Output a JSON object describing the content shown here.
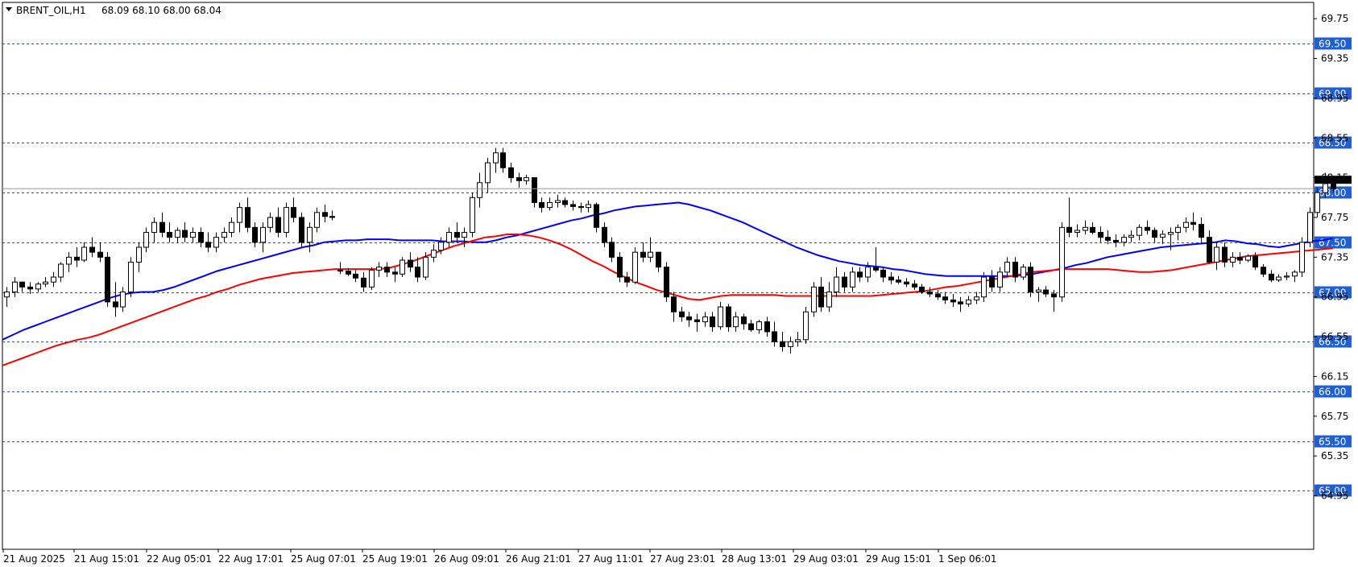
{
  "header": {
    "symbol": "BRENT_OIL,H1",
    "ohlc": "68.09 68.10 68.00 68.04"
  },
  "colors": {
    "background": "#ffffff",
    "frame": "#000000",
    "bull_candle": "#ffffff",
    "bear_candle": "#000000",
    "ma_fast": "#0000ff",
    "ma_slow": "#ff0000",
    "level_line": "#1e4fbf",
    "level_label_bg": "#1e5fd6",
    "zone_fill": "#d2a570",
    "current_price_label_bg": "#000000"
  },
  "chart_data": {
    "type": "candlestick",
    "title": "BRENT_OIL,H1",
    "ylim": [
      64.95,
      69.88
    ],
    "y_ticks": [
      "69.75",
      "69.35",
      "68.95",
      "68.55",
      "68.15",
      "67.75",
      "67.35",
      "66.95",
      "66.55",
      "66.15",
      "65.75",
      "65.35",
      "64.95"
    ],
    "x_ticks": [
      "21 Aug 2025",
      "21 Aug 15:01",
      "22 Aug 05:01",
      "22 Aug 17:01",
      "25 Aug 07:01",
      "25 Aug 19:01",
      "26 Aug 09:01",
      "26 Aug 21:01",
      "27 Aug 11:01",
      "27 Aug 23:01",
      "28 Aug 13:01",
      "29 Aug 03:01",
      "29 Aug 15:01",
      "1 Sep 06:01"
    ],
    "horizontal_levels": [
      "69.50",
      "69.00",
      "68.50",
      "68.00",
      "67.50",
      "67.00",
      "66.50",
      "66.00",
      "65.50",
      "65.00"
    ],
    "current_price": "68.04",
    "zone": {
      "from_bar": 199,
      "to_bar": 250,
      "low": 67.5,
      "high": 68.0
    },
    "candles": [
      [
        66.95,
        67.05,
        66.85,
        67.0
      ],
      [
        67.0,
        67.15,
        66.95,
        67.1
      ],
      [
        67.1,
        67.1,
        67.0,
        67.05
      ],
      [
        67.05,
        67.1,
        66.98,
        67.03
      ],
      [
        67.03,
        67.1,
        67.0,
        67.08
      ],
      [
        67.08,
        67.15,
        67.05,
        67.1
      ],
      [
        67.1,
        67.2,
        67.05,
        67.15
      ],
      [
        67.15,
        67.3,
        67.1,
        67.28
      ],
      [
        67.28,
        67.4,
        67.2,
        67.35
      ],
      [
        67.35,
        67.45,
        67.25,
        67.32
      ],
      [
        67.32,
        67.5,
        67.3,
        67.45
      ],
      [
        67.45,
        67.55,
        67.35,
        67.4
      ],
      [
        67.4,
        67.5,
        67.3,
        67.35
      ],
      [
        67.35,
        67.4,
        66.85,
        66.9
      ],
      [
        66.9,
        67.1,
        66.75,
        66.85
      ],
      [
        66.85,
        67.05,
        66.8,
        67.0
      ],
      [
        67.0,
        67.35,
        66.95,
        67.3
      ],
      [
        67.3,
        67.5,
        67.2,
        67.45
      ],
      [
        67.45,
        67.65,
        67.4,
        67.6
      ],
      [
        67.6,
        67.75,
        67.5,
        67.7
      ],
      [
        67.7,
        67.8,
        67.55,
        67.6
      ],
      [
        67.6,
        67.7,
        67.5,
        67.55
      ],
      [
        67.55,
        67.65,
        67.5,
        67.62
      ],
      [
        67.62,
        67.7,
        67.5,
        67.55
      ],
      [
        67.55,
        67.65,
        67.5,
        67.6
      ],
      [
        67.6,
        67.65,
        67.45,
        67.5
      ],
      [
        67.5,
        67.6,
        67.4,
        67.45
      ],
      [
        67.45,
        67.6,
        67.4,
        67.55
      ],
      [
        67.55,
        67.65,
        67.5,
        67.6
      ],
      [
        67.6,
        67.75,
        67.55,
        67.7
      ],
      [
        67.7,
        67.9,
        67.6,
        67.85
      ],
      [
        67.85,
        67.95,
        67.6,
        67.65
      ],
      [
        67.65,
        67.7,
        67.45,
        67.5
      ],
      [
        67.5,
        67.7,
        67.4,
        67.65
      ],
      [
        67.65,
        67.8,
        67.6,
        67.75
      ],
      [
        67.75,
        67.85,
        67.55,
        67.6
      ],
      [
        67.6,
        67.9,
        67.55,
        67.85
      ],
      [
        67.85,
        67.95,
        67.7,
        67.75
      ],
      [
        67.75,
        67.8,
        67.45,
        67.5
      ],
      [
        67.5,
        67.7,
        67.4,
        67.65
      ],
      [
        67.65,
        67.85,
        67.6,
        67.8
      ],
      [
        67.8,
        67.88,
        67.7,
        67.76
      ],
      [
        67.76,
        67.82,
        67.72,
        67.75
      ],
      [
        67.22,
        67.3,
        67.18,
        67.21
      ],
      [
        67.21,
        67.24,
        67.16,
        67.18
      ],
      [
        67.18,
        67.22,
        67.1,
        67.14
      ],
      [
        67.14,
        67.2,
        67.0,
        67.05
      ],
      [
        67.05,
        67.25,
        67.02,
        67.22
      ],
      [
        67.22,
        67.3,
        67.15,
        67.25
      ],
      [
        67.25,
        67.3,
        67.15,
        67.2
      ],
      [
        67.2,
        67.25,
        67.1,
        67.18
      ],
      [
        67.18,
        67.35,
        67.15,
        67.32
      ],
      [
        67.32,
        67.4,
        67.2,
        67.25
      ],
      [
        67.25,
        67.35,
        67.1,
        67.15
      ],
      [
        67.15,
        67.4,
        67.12,
        67.35
      ],
      [
        67.35,
        67.48,
        67.3,
        67.42
      ],
      [
        67.42,
        67.55,
        67.38,
        67.5
      ],
      [
        67.5,
        67.65,
        67.45,
        67.6
      ],
      [
        67.6,
        67.7,
        67.5,
        67.55
      ],
      [
        67.55,
        67.65,
        67.45,
        67.6
      ],
      [
        67.6,
        68.0,
        67.55,
        67.95
      ],
      [
        67.95,
        68.2,
        67.85,
        68.1
      ],
      [
        68.1,
        68.35,
        68.0,
        68.3
      ],
      [
        68.3,
        68.45,
        68.2,
        68.4
      ],
      [
        68.4,
        68.45,
        68.2,
        68.25
      ],
      [
        68.25,
        68.3,
        68.1,
        68.15
      ],
      [
        68.15,
        68.2,
        68.05,
        68.12
      ],
      [
        68.12,
        68.18,
        68.08,
        68.15
      ],
      [
        68.15,
        68.15,
        67.85,
        67.9
      ],
      [
        67.9,
        67.95,
        67.8,
        67.85
      ],
      [
        67.85,
        67.95,
        67.82,
        67.9
      ],
      [
        67.9,
        67.98,
        67.85,
        67.92
      ],
      [
        67.92,
        67.95,
        67.85,
        67.88
      ],
      [
        67.88,
        67.92,
        67.82,
        67.86
      ],
      [
        67.86,
        67.9,
        67.8,
        67.85
      ],
      [
        67.85,
        67.92,
        67.8,
        67.88
      ],
      [
        67.88,
        67.9,
        67.6,
        67.65
      ],
      [
        67.65,
        67.7,
        67.45,
        67.5
      ],
      [
        67.5,
        67.55,
        67.3,
        67.35
      ],
      [
        67.35,
        67.4,
        67.1,
        67.15
      ],
      [
        67.15,
        67.2,
        67.05,
        67.1
      ],
      [
        67.1,
        67.45,
        67.08,
        67.4
      ],
      [
        67.4,
        67.5,
        67.3,
        67.35
      ],
      [
        67.35,
        67.55,
        67.3,
        67.4
      ],
      [
        67.4,
        67.4,
        67.2,
        67.25
      ],
      [
        67.25,
        67.3,
        66.9,
        66.95
      ],
      [
        66.95,
        67.0,
        66.7,
        66.8
      ],
      [
        66.8,
        66.85,
        66.7,
        66.75
      ],
      [
        66.75,
        66.8,
        66.65,
        66.72
      ],
      [
        66.72,
        66.78,
        66.6,
        66.7
      ],
      [
        66.7,
        66.8,
        66.65,
        66.75
      ],
      [
        66.75,
        66.8,
        66.6,
        66.65
      ],
      [
        66.65,
        66.9,
        66.62,
        66.85
      ],
      [
        66.85,
        66.88,
        66.6,
        66.65
      ],
      [
        66.65,
        66.8,
        66.6,
        66.75
      ],
      [
        66.75,
        66.78,
        66.62,
        66.68
      ],
      [
        66.68,
        66.72,
        66.6,
        66.62
      ],
      [
        66.62,
        66.72,
        66.58,
        66.7
      ],
      [
        66.7,
        66.75,
        66.55,
        66.6
      ],
      [
        66.6,
        66.7,
        66.45,
        66.5
      ],
      [
        66.5,
        66.6,
        66.4,
        66.45
      ],
      [
        66.45,
        66.55,
        66.38,
        66.5
      ],
      [
        66.5,
        66.6,
        66.45,
        66.52
      ],
      [
        66.52,
        66.85,
        66.48,
        66.8
      ],
      [
        66.8,
        67.1,
        66.75,
        67.05
      ],
      [
        67.05,
        67.15,
        66.8,
        66.85
      ],
      [
        66.85,
        67.1,
        66.8,
        67.0
      ],
      [
        67.0,
        67.25,
        66.95,
        67.15
      ],
      [
        67.15,
        67.2,
        67.0,
        67.05
      ],
      [
        67.05,
        67.25,
        67.0,
        67.2
      ],
      [
        67.2,
        67.25,
        67.1,
        67.15
      ],
      [
        67.15,
        67.3,
        67.1,
        67.25
      ],
      [
        67.25,
        67.45,
        67.2,
        67.22
      ],
      [
        67.22,
        67.25,
        67.1,
        67.15
      ],
      [
        67.15,
        67.2,
        67.08,
        67.12
      ],
      [
        67.12,
        67.16,
        67.08,
        67.1
      ],
      [
        67.1,
        67.14,
        67.05,
        67.08
      ],
      [
        67.08,
        67.12,
        67.02,
        67.05
      ],
      [
        67.05,
        67.08,
        66.98,
        67.0
      ],
      [
        67.0,
        67.05,
        66.95,
        66.98
      ],
      [
        66.98,
        67.02,
        66.92,
        66.95
      ],
      [
        66.95,
        67.0,
        66.88,
        66.92
      ],
      [
        66.92,
        66.98,
        66.85,
        66.9
      ],
      [
        66.9,
        66.95,
        66.8,
        66.88
      ],
      [
        66.88,
        66.96,
        66.85,
        66.92
      ],
      [
        66.92,
        67.0,
        66.88,
        66.95
      ],
      [
        66.95,
        67.2,
        66.9,
        67.15
      ],
      [
        67.15,
        67.22,
        67.0,
        67.05
      ],
      [
        67.05,
        67.25,
        67.0,
        67.2
      ],
      [
        67.2,
        67.35,
        67.15,
        67.3
      ],
      [
        67.3,
        67.35,
        67.1,
        67.15
      ],
      [
        67.15,
        67.28,
        67.12,
        67.25
      ],
      [
        67.25,
        67.3,
        66.95,
        67.0
      ],
      [
        67.0,
        67.05,
        66.9,
        67.02
      ],
      [
        67.02,
        67.06,
        66.95,
        66.98
      ],
      [
        66.98,
        67.02,
        66.8,
        66.95
      ],
      [
        66.95,
        67.7,
        66.9,
        67.65
      ],
      [
        67.65,
        67.95,
        67.55,
        67.6
      ],
      [
        67.6,
        67.68,
        67.55,
        67.62
      ],
      [
        67.62,
        67.72,
        67.58,
        67.65
      ],
      [
        67.65,
        67.7,
        67.58,
        67.6
      ],
      [
        67.6,
        67.66,
        67.5,
        67.55
      ],
      [
        67.55,
        67.62,
        67.48,
        67.52
      ],
      [
        67.52,
        67.58,
        67.45,
        67.5
      ],
      [
        67.5,
        67.58,
        67.46,
        67.55
      ],
      [
        67.55,
        67.62,
        67.5,
        67.57
      ],
      [
        67.57,
        67.68,
        67.52,
        67.65
      ],
      [
        67.65,
        67.72,
        67.58,
        67.62
      ],
      [
        67.62,
        67.65,
        67.5,
        67.55
      ],
      [
        67.55,
        67.62,
        67.48,
        67.58
      ],
      [
        67.58,
        67.65,
        67.42,
        67.6
      ],
      [
        67.6,
        67.68,
        67.52,
        67.65
      ],
      [
        67.65,
        67.75,
        67.6,
        67.7
      ],
      [
        67.7,
        67.8,
        67.62,
        67.68
      ],
      [
        67.68,
        67.75,
        67.5,
        67.55
      ],
      [
        67.55,
        67.62,
        67.28,
        67.3
      ],
      [
        67.3,
        67.5,
        67.22,
        67.45
      ],
      [
        67.45,
        67.5,
        67.25,
        67.3
      ],
      [
        67.3,
        67.4,
        67.25,
        67.35
      ],
      [
        67.35,
        67.4,
        67.28,
        67.32
      ],
      [
        67.32,
        67.38,
        67.3,
        67.36
      ],
      [
        67.36,
        67.4,
        67.22,
        67.25
      ],
      [
        67.25,
        67.28,
        67.15,
        67.18
      ],
      [
        67.18,
        67.22,
        67.1,
        67.12
      ],
      [
        67.12,
        67.18,
        67.1,
        67.15
      ],
      [
        67.15,
        67.2,
        67.12,
        67.16
      ],
      [
        67.16,
        67.22,
        67.1,
        67.2
      ],
      [
        67.2,
        67.55,
        67.15,
        67.5
      ],
      [
        67.5,
        67.85,
        67.45,
        67.8
      ],
      [
        67.8,
        68.05,
        67.75,
        68.0
      ],
      [
        68.0,
        68.2,
        67.95,
        68.09
      ],
      [
        68.09,
        68.1,
        68.0,
        68.04
      ]
    ],
    "series": [
      {
        "name": "",
        "values": [
          66.52,
          66.57,
          66.62,
          66.66,
          66.7,
          66.74,
          66.78,
          66.82,
          66.86,
          66.9,
          66.94,
          66.97,
          66.99,
          67.0,
          67.0,
          67.02,
          67.05,
          67.09,
          67.13,
          67.17,
          67.21,
          67.24,
          67.27,
          67.3,
          67.33,
          67.36,
          67.39,
          67.42,
          67.45,
          67.47,
          67.5,
          67.51,
          67.52,
          67.52,
          67.53,
          67.53,
          67.53,
          67.52,
          67.52,
          67.52,
          67.52,
          67.51,
          67.51,
          67.51,
          67.5,
          67.5,
          67.52,
          67.55,
          67.57,
          67.6,
          67.63,
          67.66,
          67.69,
          67.72,
          67.74,
          67.77,
          67.79,
          67.82,
          67.84,
          67.86,
          67.87,
          67.88,
          67.89,
          67.9,
          67.88,
          67.85,
          67.82,
          67.78,
          67.74,
          67.7,
          67.65,
          67.6,
          67.55,
          67.5,
          67.45,
          67.41,
          67.37,
          67.34,
          67.31,
          67.29,
          67.27,
          67.26,
          67.25,
          67.23,
          67.22,
          67.2,
          67.18,
          67.17,
          67.16,
          67.16,
          67.16,
          67.16,
          67.16,
          67.16,
          67.16,
          67.17,
          67.18,
          67.2,
          67.22,
          67.24,
          67.27,
          67.29,
          67.32,
          67.35,
          67.37,
          67.39,
          67.41,
          67.43,
          67.45,
          67.46,
          67.47,
          67.48,
          67.49,
          67.5,
          67.52,
          67.51,
          67.49,
          67.48,
          67.46,
          67.45,
          67.47,
          67.49,
          67.51,
          67.52,
          67.54
        ]
      },
      {
        "name": "",
        "values": [
          66.26,
          66.3,
          66.34,
          66.38,
          66.42,
          66.46,
          66.49,
          66.52,
          66.54,
          66.57,
          66.61,
          66.65,
          66.69,
          66.73,
          66.77,
          66.81,
          66.85,
          66.89,
          66.93,
          66.96,
          67.0,
          67.03,
          67.07,
          67.1,
          67.13,
          67.15,
          67.17,
          67.19,
          67.2,
          67.21,
          67.22,
          67.23,
          67.23,
          67.23,
          67.23,
          67.23,
          67.24,
          67.27,
          67.3,
          67.34,
          67.38,
          67.42,
          67.46,
          67.49,
          67.52,
          67.55,
          67.56,
          67.58,
          67.58,
          67.57,
          67.55,
          67.52,
          67.48,
          67.43,
          67.37,
          67.31,
          67.26,
          67.2,
          67.15,
          67.1,
          67.06,
          67.02,
          66.99,
          66.96,
          66.93,
          66.92,
          66.94,
          66.96,
          66.97,
          66.97,
          66.97,
          66.97,
          66.97,
          66.96,
          66.96,
          66.96,
          66.96,
          66.96,
          66.96,
          66.96,
          66.96,
          66.96,
          66.97,
          66.98,
          66.99,
          67.0,
          67.01,
          67.03,
          67.05,
          67.06,
          67.08,
          67.1,
          67.12,
          67.14,
          67.16,
          67.18,
          67.2,
          67.21,
          67.22,
          67.23,
          67.23,
          67.23,
          67.23,
          67.23,
          67.22,
          67.21,
          67.2,
          67.2,
          67.21,
          67.22,
          67.24,
          67.26,
          67.28,
          67.3,
          67.32,
          67.34,
          67.36,
          67.37,
          67.38,
          67.39,
          67.4,
          67.41,
          67.42,
          67.43,
          67.44
        ]
      }
    ],
    "grid": false,
    "legend": "none"
  }
}
